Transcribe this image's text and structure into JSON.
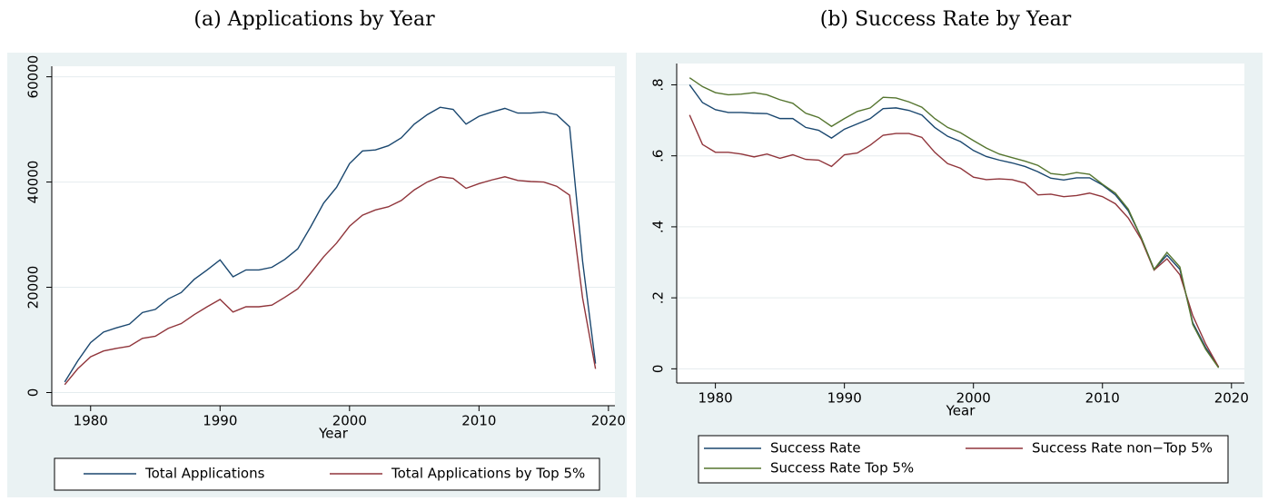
{
  "chart_data": [
    {
      "type": "line",
      "title": "(a) Applications by Year",
      "x_label": "Year",
      "x": [
        1978,
        1979,
        1980,
        1981,
        1982,
        1983,
        1984,
        1985,
        1986,
        1987,
        1988,
        1989,
        1990,
        1991,
        1992,
        1993,
        1994,
        1995,
        1996,
        1997,
        1998,
        1999,
        2000,
        2001,
        2002,
        2003,
        2004,
        2005,
        2006,
        2007,
        2008,
        2009,
        2010,
        2011,
        2012,
        2013,
        2014,
        2015,
        2016,
        2017,
        2018,
        2019
      ],
      "xlim": [
        1977,
        2020.5
      ],
      "xticks": [
        1980,
        1990,
        2000,
        2010,
        2020
      ],
      "ylim": [
        -2500,
        62000
      ],
      "yticks": [
        0,
        20000,
        40000,
        60000
      ],
      "grid": true,
      "series": [
        {
          "name": "Total Applications",
          "color": "#1a476f",
          "values": [
            2000,
            6000,
            9500,
            11500,
            12300,
            13000,
            15200,
            15800,
            17800,
            19000,
            21500,
            23300,
            25200,
            22000,
            23300,
            23300,
            23800,
            25300,
            27300,
            31500,
            36000,
            39000,
            43500,
            45900,
            46100,
            46900,
            48400,
            51000,
            52800,
            54200,
            53800,
            51000,
            52500,
            53300,
            54000,
            53100,
            53100,
            53300,
            52800,
            50500,
            25000,
            5500
          ]
        },
        {
          "name": "Total Applications by Top 5%",
          "color": "#90353b",
          "values": [
            1500,
            4500,
            6800,
            7900,
            8400,
            8800,
            10300,
            10700,
            12200,
            13100,
            14800,
            16300,
            17700,
            15300,
            16300,
            16300,
            16600,
            18100,
            19700,
            22700,
            25800,
            28400,
            31600,
            33700,
            34700,
            35300,
            36500,
            38500,
            40000,
            41000,
            40700,
            38800,
            39700,
            40400,
            41000,
            40300,
            40100,
            40000,
            39200,
            37500,
            18000,
            4500
          ]
        }
      ]
    },
    {
      "type": "line",
      "title": "(b) Success Rate by Year",
      "x_label": "Year",
      "x": [
        1978,
        1979,
        1980,
        1981,
        1982,
        1983,
        1984,
        1985,
        1986,
        1987,
        1988,
        1989,
        1990,
        1991,
        1992,
        1993,
        1994,
        1995,
        1996,
        1997,
        1998,
        1999,
        2000,
        2001,
        2002,
        2003,
        2004,
        2005,
        2006,
        2007,
        2008,
        2009,
        2010,
        2011,
        2012,
        2013,
        2014,
        2015,
        2016,
        2017,
        2018,
        2019
      ],
      "xlim": [
        1977,
        2021
      ],
      "xticks": [
        1980,
        1990,
        2000,
        2010,
        2020
      ],
      "ylim": [
        -0.04,
        0.86
      ],
      "yticks": [
        0,
        {
          "value": 0.2,
          "label": ".2"
        },
        {
          "value": 0.4,
          "label": ".4"
        },
        {
          "value": 0.6,
          "label": ".6"
        },
        {
          "value": 0.8,
          "label": ".8"
        }
      ],
      "grid": true,
      "series": [
        {
          "name": "Success Rate",
          "color": "#1a476f",
          "values": [
            0.8,
            0.75,
            0.73,
            0.722,
            0.722,
            0.72,
            0.719,
            0.705,
            0.705,
            0.68,
            0.672,
            0.65,
            0.675,
            0.69,
            0.705,
            0.733,
            0.735,
            0.728,
            0.715,
            0.68,
            0.655,
            0.64,
            0.615,
            0.598,
            0.588,
            0.58,
            0.57,
            0.555,
            0.537,
            0.532,
            0.538,
            0.538,
            0.518,
            0.49,
            0.445,
            0.37,
            0.28,
            0.32,
            0.28,
            0.13,
            0.06,
            0.005
          ]
        },
        {
          "name": "Success Rate non−Top 5%",
          "color": "#90353b",
          "values": [
            0.715,
            0.632,
            0.61,
            0.61,
            0.605,
            0.597,
            0.605,
            0.593,
            0.603,
            0.59,
            0.588,
            0.57,
            0.603,
            0.608,
            0.63,
            0.658,
            0.663,
            0.663,
            0.652,
            0.61,
            0.578,
            0.565,
            0.54,
            0.533,
            0.535,
            0.533,
            0.523,
            0.49,
            0.492,
            0.485,
            0.488,
            0.495,
            0.485,
            0.465,
            0.425,
            0.365,
            0.278,
            0.31,
            0.265,
            0.15,
            0.07,
            0.005
          ]
        },
        {
          "name": "Success Rate Top 5%",
          "color": "#55752f",
          "values": [
            0.82,
            0.795,
            0.778,
            0.772,
            0.774,
            0.778,
            0.772,
            0.758,
            0.748,
            0.72,
            0.708,
            0.683,
            0.705,
            0.725,
            0.735,
            0.765,
            0.763,
            0.752,
            0.737,
            0.705,
            0.68,
            0.665,
            0.643,
            0.622,
            0.605,
            0.595,
            0.585,
            0.573,
            0.55,
            0.546,
            0.553,
            0.548,
            0.52,
            0.495,
            0.45,
            0.37,
            0.28,
            0.328,
            0.287,
            0.125,
            0.055,
            0.003
          ]
        }
      ]
    }
  ]
}
